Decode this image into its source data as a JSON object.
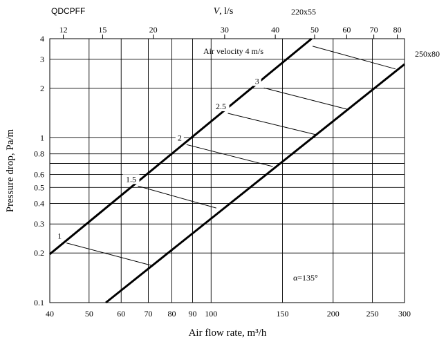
{
  "chart_data": {
    "type": "line",
    "title": "",
    "model_label": "QDCPFF",
    "xlabel": "Air flow rate, m³/h",
    "ylabel": "Pressure drop, Pa/m",
    "top_axis_label": {
      "symbol": "V",
      "unit": ", l/s"
    },
    "x_scale": "log",
    "y_scale": "log",
    "xlim": [
      40,
      300
    ],
    "ylim": [
      0.1,
      4
    ],
    "x_ticks": [
      40,
      50,
      60,
      70,
      80,
      90,
      100,
      150,
      200,
      250,
      300
    ],
    "y_ticks": [
      0.1,
      0.2,
      0.3,
      0.4,
      0.5,
      0.6,
      0.7,
      0.8,
      1,
      2,
      3,
      4
    ],
    "y_tick_labels": [
      "0.1",
      "0.2",
      "0.3",
      "0.4",
      "0.5",
      "0.6",
      "",
      "0.8",
      "1",
      "2",
      "3",
      "4"
    ],
    "top_ticks_ls": [
      12,
      15,
      20,
      30,
      40,
      50,
      60,
      70,
      80
    ],
    "top_tick_labels": [
      "12",
      "15",
      "20",
      "30",
      "40",
      "50",
      "60",
      "70",
      "80"
    ],
    "grid": true,
    "series": [
      {
        "name": "220x55",
        "points": [
          [
            40,
            0.197
          ],
          [
            177,
            4
          ]
        ]
      },
      {
        "name": "250x80",
        "points": [
          [
            55,
            0.1
          ],
          [
            300,
            2.8
          ]
        ]
      }
    ],
    "velocity_lines": [
      {
        "label": "1",
        "from": [
          44,
          0.23
        ],
        "to": [
          72,
          0.167
        ]
      },
      {
        "label": "1.5",
        "from": [
          66,
          0.51
        ],
        "to": [
          103,
          0.375
        ]
      },
      {
        "label": "2",
        "from": [
          87,
          0.91
        ],
        "to": [
          142,
          0.67
        ]
      },
      {
        "label": "2.5",
        "from": [
          110,
          1.41
        ],
        "to": [
          183,
          1.04
        ]
      },
      {
        "label": "3",
        "from": [
          135,
          2.01
        ],
        "to": [
          217,
          1.49
        ]
      },
      {
        "label": "4 m/s",
        "from": [
          178,
          3.6
        ],
        "to": [
          285,
          2.62
        ]
      }
    ],
    "annotations": {
      "velocity_caption": "Air velocity 4 m/s",
      "angle": "α=135°"
    }
  }
}
